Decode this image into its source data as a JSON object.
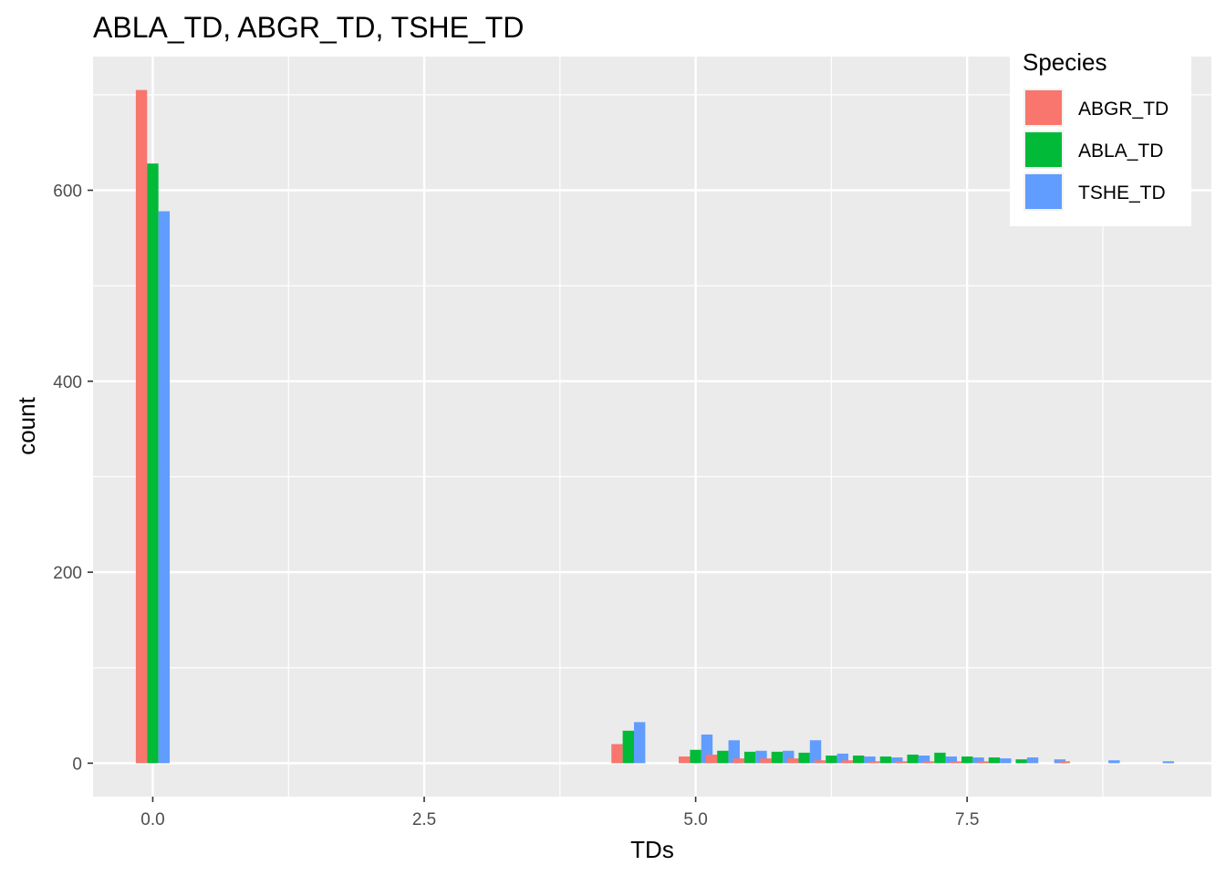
{
  "chart_data": {
    "type": "bar",
    "title": "ABLA_TD, ABGR_TD, TSHE_TD",
    "xlabel": "TDs",
    "ylabel": "count",
    "xlim": [
      -0.55,
      9.75
    ],
    "ylim": [
      -35,
      740
    ],
    "x_ticks": [
      0.0,
      2.5,
      5.0,
      7.5
    ],
    "x_tick_labels": [
      "0.0",
      "2.5",
      "5.0",
      "7.5"
    ],
    "y_ticks": [
      0,
      200,
      400,
      600
    ],
    "y_tick_labels": [
      "0",
      "200",
      "400",
      "600"
    ],
    "grid": true,
    "legend": {
      "title": "Species",
      "position": "top-right"
    },
    "bar_width": 0.104,
    "x": [
      0.0,
      4.38,
      4.63,
      5.0,
      5.25,
      5.5,
      5.75,
      6.0,
      6.25,
      6.5,
      6.75,
      7.0,
      7.25,
      7.5,
      7.75,
      8.0,
      8.25,
      8.5,
      8.75,
      9.0,
      9.25
    ],
    "series": [
      {
        "name": "ABGR_TD",
        "color": "#F8766D",
        "values": [
          705,
          20,
          0,
          7,
          9,
          5,
          5,
          5,
          3,
          3,
          2,
          2,
          2,
          2,
          2,
          0,
          0,
          2,
          0,
          0,
          0
        ]
      },
      {
        "name": "ABLA_TD",
        "color": "#00BA38",
        "values": [
          628,
          34,
          0,
          14,
          13,
          12,
          12,
          11,
          8,
          8,
          7,
          9,
          11,
          7,
          6,
          4,
          0,
          0,
          0,
          0,
          0
        ]
      },
      {
        "name": "TSHE_TD",
        "color": "#619CFF",
        "values": [
          578,
          43,
          0,
          30,
          24,
          13,
          13,
          24,
          10,
          7,
          6,
          8,
          7,
          6,
          5,
          6,
          4,
          0,
          3,
          0,
          2
        ]
      }
    ]
  }
}
